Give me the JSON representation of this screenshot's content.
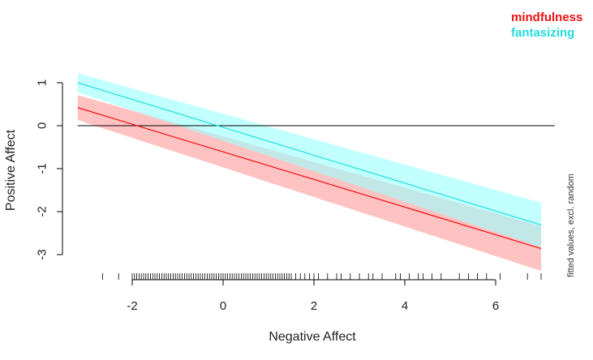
{
  "chart_data": {
    "type": "line",
    "title": "",
    "xlabel": "Negative Affect",
    "ylabel": "Positive Affect",
    "side_note": "fitted values, excl. random",
    "xlim": [
      -3.3,
      7.3
    ],
    "ylim": [
      -3.3,
      1.4
    ],
    "x_ticks": [
      -2,
      0,
      2,
      4,
      6
    ],
    "y_ticks": [
      1,
      0,
      -1,
      -2,
      -3
    ],
    "x_tick_labels": [
      "-2",
      "0",
      "2",
      "4",
      "6"
    ],
    "y_tick_labels": [
      "1",
      "0",
      "-1",
      "-2",
      "-3"
    ],
    "reference_line_y": 0,
    "grid": false,
    "legend_placement": "top-right",
    "series": [
      {
        "name": "mindfulness",
        "color": "#ee1111",
        "band_color": "#ff9999",
        "x": [
          -3.2,
          7.0
        ],
        "y": [
          0.42,
          -2.86
        ],
        "lower": [
          0.13,
          -3.38
        ],
        "upper": [
          0.71,
          -2.34
        ]
      },
      {
        "name": "fantasizing",
        "color": "#22dddd",
        "band_color": "#99ffff",
        "x": [
          -3.2,
          7.0
        ],
        "y": [
          1.0,
          -2.31
        ],
        "lower": [
          0.78,
          -2.83
        ],
        "upper": [
          1.22,
          -1.79
        ]
      }
    ],
    "rug_x": [
      -2.65,
      -2.3,
      -2.0,
      -1.95,
      -1.9,
      -1.85,
      -1.8,
      -1.75,
      -1.7,
      -1.65,
      -1.6,
      -1.55,
      -1.5,
      -1.45,
      -1.4,
      -1.35,
      -1.3,
      -1.25,
      -1.2,
      -1.15,
      -1.1,
      -1.05,
      -1.0,
      -0.95,
      -0.9,
      -0.85,
      -0.8,
      -0.75,
      -0.7,
      -0.65,
      -0.6,
      -0.55,
      -0.5,
      -0.45,
      -0.4,
      -0.35,
      -0.3,
      -0.25,
      -0.2,
      -0.15,
      -0.1,
      -0.05,
      0.0,
      0.05,
      0.1,
      0.15,
      0.2,
      0.25,
      0.3,
      0.35,
      0.4,
      0.45,
      0.5,
      0.55,
      0.6,
      0.65,
      0.7,
      0.75,
      0.8,
      0.85,
      0.9,
      0.95,
      1.0,
      1.05,
      1.1,
      1.15,
      1.2,
      1.25,
      1.3,
      1.35,
      1.4,
      1.45,
      1.5,
      1.6,
      1.7,
      1.8,
      1.9,
      2.0,
      2.1,
      2.3,
      2.5,
      2.6,
      2.8,
      3.0,
      3.2,
      3.3,
      3.5,
      3.8,
      3.9,
      4.1,
      4.3,
      4.4,
      4.6,
      4.8,
      5.2,
      5.4,
      5.6,
      5.8,
      6.1,
      6.7,
      7.0
    ]
  }
}
